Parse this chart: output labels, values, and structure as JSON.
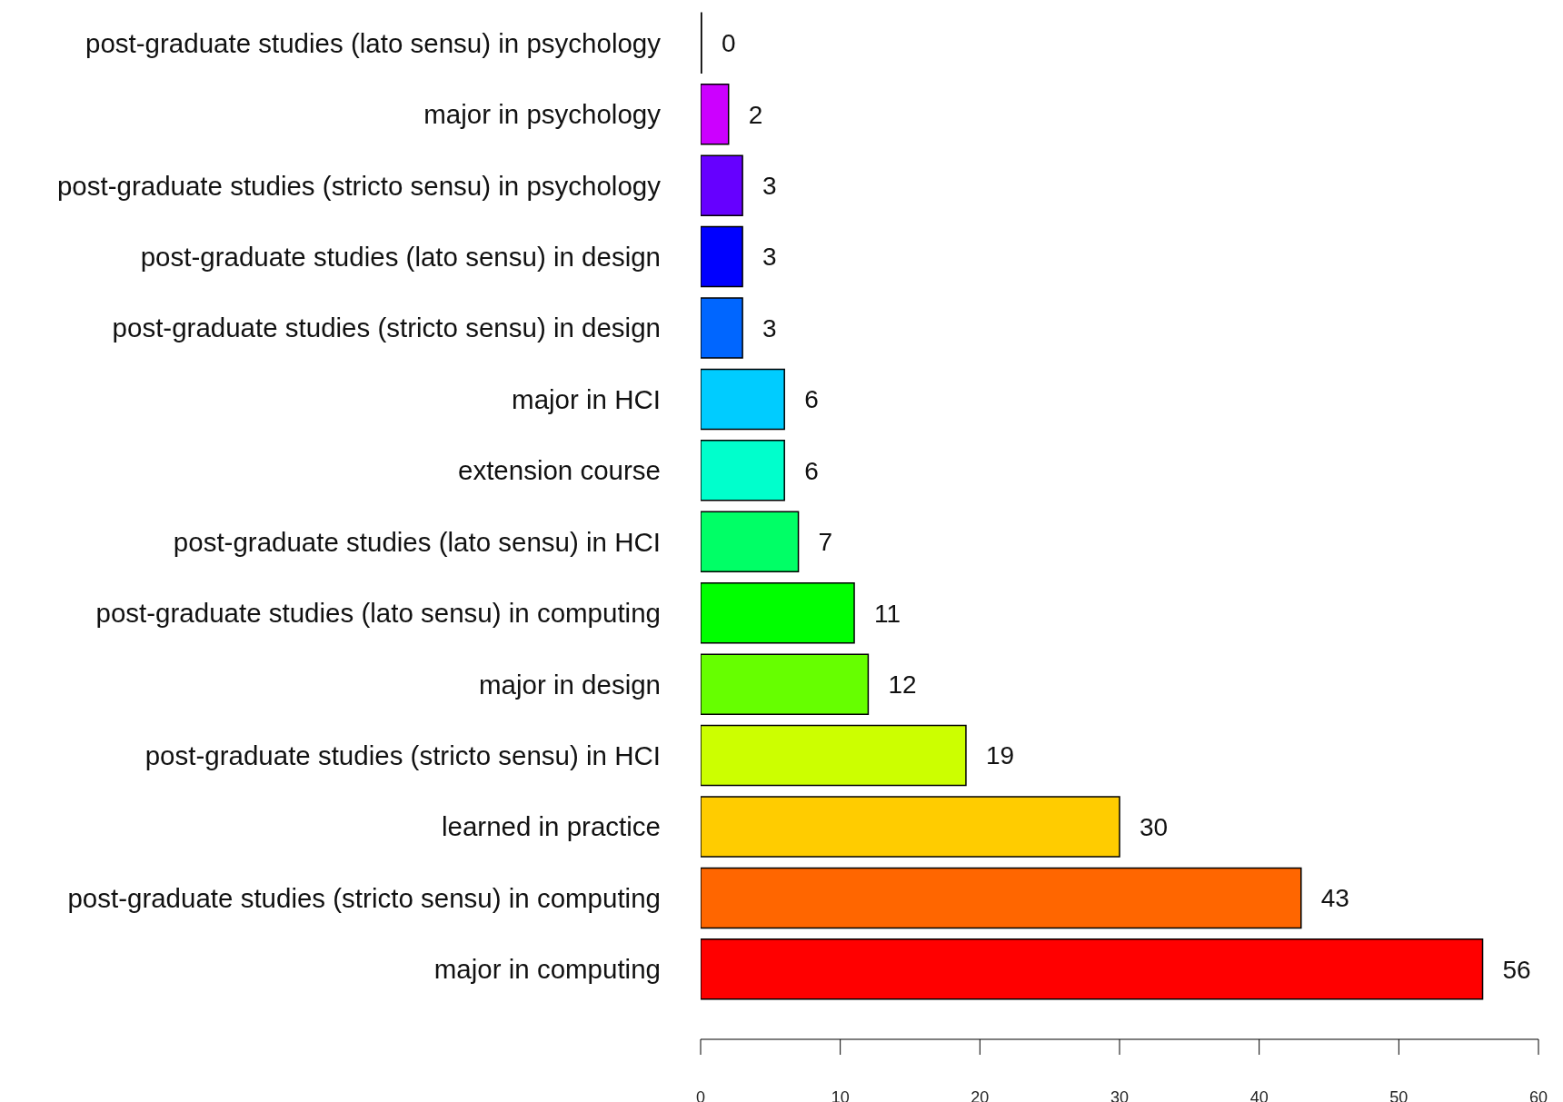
{
  "chart_data": {
    "type": "bar",
    "orientation": "horizontal",
    "categories": [
      "post-graduate studies (lato sensu) in psychology",
      "major in psychology",
      "post-graduate studies (stricto sensu) in psychology",
      "post-graduate studies (lato sensu) in design",
      "post-graduate studies (stricto sensu) in design",
      "major in HCI",
      "extension course",
      "post-graduate studies (lato sensu) in HCI",
      "post-graduate studies (lato sensu) in computing",
      "major in design",
      "post-graduate studies (stricto sensu) in HCI",
      "learned in practice",
      "post-graduate studies (stricto sensu) in computing",
      "major in computing"
    ],
    "values": [
      0,
      2,
      3,
      3,
      3,
      6,
      6,
      7,
      11,
      12,
      19,
      30,
      43,
      56
    ],
    "colors": [
      "#ff00cc",
      "#cc00ff",
      "#6600ff",
      "#0000ff",
      "#0066ff",
      "#00ccff",
      "#00ffcc",
      "#00ff66",
      "#00ff00",
      "#66ff00",
      "#ccff00",
      "#ffcc00",
      "#ff6600",
      "#ff0000"
    ],
    "xlim": [
      0,
      60
    ],
    "xticks": [
      0,
      10,
      20,
      30,
      40,
      50,
      60
    ],
    "data_labels": true,
    "grid": false
  }
}
